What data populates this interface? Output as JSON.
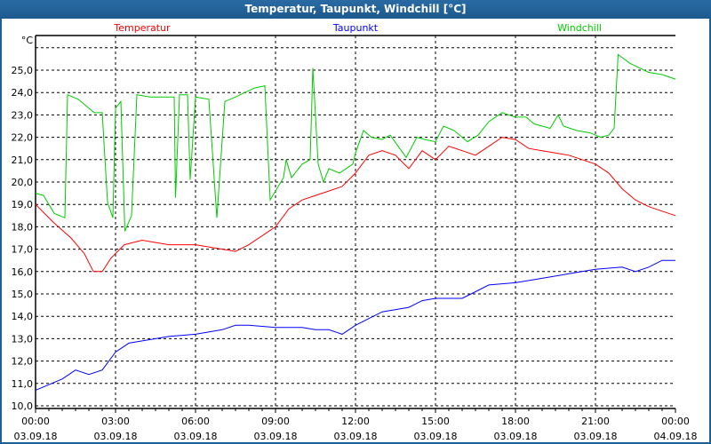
{
  "window": {
    "title": "Temperatur, Taupunkt, Windchill [°C]"
  },
  "chart_data": {
    "type": "line",
    "title": "Temperatur, Taupunkt, Windchill [°C]",
    "ylabel": "°C",
    "ylim": [
      10,
      26.1
    ],
    "xlim_hours": [
      0,
      24
    ],
    "yticks": [
      10,
      11,
      12,
      13,
      14,
      15,
      16,
      17,
      18,
      19,
      20,
      21,
      22,
      23,
      24,
      25
    ],
    "ytick_labels": [
      "10,0",
      "11,0",
      "12,0",
      "13,0",
      "14,0",
      "15,0",
      "16,0",
      "17,0",
      "18,0",
      "19,0",
      "20,0",
      "21,0",
      "22,0",
      "23,0",
      "24,0",
      "25,0"
    ],
    "xticks": [
      {
        "h": 0,
        "time": "00:00",
        "date": "03.09.18"
      },
      {
        "h": 3,
        "time": "03:00",
        "date": "03.09.18"
      },
      {
        "h": 6,
        "time": "06:00",
        "date": "03.09.18"
      },
      {
        "h": 9,
        "time": "09:00",
        "date": "03.09.18"
      },
      {
        "h": 12,
        "time": "12:00",
        "date": "03.09.18"
      },
      {
        "h": 15,
        "time": "15:00",
        "date": "03.09.18"
      },
      {
        "h": 18,
        "time": "18:00",
        "date": "03.09.18"
      },
      {
        "h": 21,
        "time": "21:00",
        "date": "03.09.18"
      },
      {
        "h": 24,
        "time": "00:00",
        "date": "04.09.18"
      }
    ],
    "grid": true,
    "legend_placement": "top",
    "series": [
      {
        "name": "Temperatur",
        "color": "#ff0000",
        "legend_pos": "left",
        "x": [
          0,
          0.67,
          1.33,
          1.83,
          2.17,
          2.5,
          2.83,
          3.33,
          4,
          5,
          6,
          7,
          7.5,
          8,
          9,
          9.5,
          10,
          10.5,
          11,
          11.5,
          12,
          12.5,
          13,
          13.5,
          14,
          14.5,
          15,
          15.5,
          16,
          16.5,
          17,
          17.5,
          18,
          18.5,
          19,
          20,
          21,
          21.5,
          22,
          22.5,
          23,
          23.5,
          24
        ],
        "y": [
          19.0,
          18.2,
          17.5,
          16.8,
          16.0,
          16.0,
          16.6,
          17.2,
          17.4,
          17.2,
          17.2,
          17.0,
          16.9,
          17.2,
          18.0,
          18.8,
          19.2,
          19.4,
          19.6,
          19.8,
          20.4,
          21.2,
          21.4,
          21.2,
          20.6,
          21.4,
          21.0,
          21.6,
          21.4,
          21.2,
          21.6,
          22.0,
          21.9,
          21.5,
          21.4,
          21.2,
          20.8,
          20.4,
          19.7,
          19.2,
          18.9,
          18.7,
          18.5
        ]
      },
      {
        "name": "Taupunkt",
        "color": "#0000ff",
        "legend_pos": "center",
        "x": [
          0,
          1,
          1.5,
          2,
          2.5,
          3,
          3.5,
          4,
          5,
          6,
          7,
          7.5,
          8,
          9,
          10,
          10.5,
          11,
          11.5,
          12,
          12.5,
          13,
          14,
          14.5,
          15,
          16,
          16.5,
          17,
          18,
          19,
          20,
          21,
          22,
          22.5,
          23,
          23.5,
          24
        ],
        "y": [
          10.7,
          11.2,
          11.6,
          11.4,
          11.6,
          12.4,
          12.8,
          12.9,
          13.1,
          13.2,
          13.4,
          13.6,
          13.6,
          13.5,
          13.5,
          13.4,
          13.4,
          13.2,
          13.6,
          13.9,
          14.2,
          14.4,
          14.7,
          14.8,
          14.8,
          15.1,
          15.4,
          15.5,
          15.7,
          15.9,
          16.1,
          16.2,
          16.0,
          16.2,
          16.5,
          16.5
        ]
      },
      {
        "name": "Windchill",
        "color": "#00cc00",
        "legend_pos": "right",
        "x": [
          0,
          0.3,
          0.7,
          1.1,
          1.2,
          1.6,
          2.2,
          2.5,
          2.7,
          2.9,
          3.0,
          3.2,
          3.35,
          3.6,
          3.8,
          4.3,
          5.0,
          5.2,
          5.25,
          5.4,
          5.7,
          5.8,
          6.0,
          6.5,
          6.8,
          7.1,
          7.5,
          8.2,
          8.6,
          8.8,
          9.3,
          9.4,
          9.6,
          10.0,
          10.3,
          10.4,
          10.6,
          10.8,
          11.0,
          11.4,
          11.9,
          12.0,
          12.3,
          12.6,
          13.0,
          13.3,
          13.6,
          13.9,
          14.3,
          14.6,
          15.0,
          15.3,
          15.7,
          16.2,
          16.6,
          17.0,
          17.5,
          18.0,
          18.4,
          18.7,
          19.0,
          19.3,
          19.6,
          19.8,
          20.3,
          20.8,
          21.2,
          21.5,
          21.7,
          21.85,
          22.3,
          23.0,
          23.5,
          24.0
        ],
        "y": [
          19.5,
          19.4,
          18.6,
          18.4,
          23.9,
          23.7,
          23.1,
          23.1,
          19.1,
          18.4,
          23.3,
          23.6,
          17.8,
          18.5,
          23.9,
          23.8,
          23.8,
          23.8,
          19.3,
          23.9,
          23.9,
          20.1,
          23.8,
          23.7,
          18.4,
          23.6,
          23.8,
          24.2,
          24.3,
          19.2,
          20.2,
          21.0,
          20.2,
          20.8,
          21.0,
          25.1,
          20.8,
          20.0,
          20.6,
          20.4,
          20.8,
          21.3,
          22.3,
          22.0,
          21.9,
          22.1,
          21.6,
          21.1,
          22.0,
          21.9,
          21.8,
          22.5,
          22.3,
          21.8,
          22.1,
          22.7,
          23.1,
          22.9,
          22.9,
          22.6,
          22.5,
          22.4,
          23.0,
          22.5,
          22.3,
          22.2,
          22.0,
          22.1,
          22.4,
          25.7,
          25.3,
          24.9,
          24.8,
          24.6
        ]
      }
    ]
  }
}
